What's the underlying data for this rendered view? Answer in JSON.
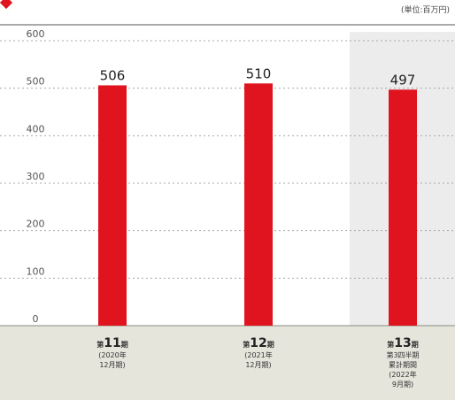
{
  "chart_data": {
    "type": "bar",
    "title": "",
    "unit_label": "(単位:百万円)",
    "ylim": [
      0,
      600
    ],
    "yticks": [
      "0",
      "100",
      "200",
      "300",
      "400",
      "500",
      "600"
    ],
    "grid": true,
    "colors": {
      "bar": "#e0141e",
      "highlight_bg": "#ececec",
      "footer_bg": "#e6e5dc",
      "grid": "#a8a8a8"
    },
    "categories": [
      {
        "prefix": "第",
        "num": "11",
        "suffix": "期",
        "lines": [
          "(2020年",
          "12月期)"
        ]
      },
      {
        "prefix": "第",
        "num": "12",
        "suffix": "期",
        "lines": [
          "(2021年",
          "12月期)"
        ]
      },
      {
        "prefix": "第",
        "num": "13",
        "suffix": "期",
        "lines": [
          "第3四半期",
          "累計期間",
          "(2022年",
          "9月期)"
        ]
      }
    ],
    "values": [
      506,
      510,
      497
    ],
    "value_labels": [
      "506",
      "510",
      "497"
    ],
    "highlight_index": 2
  }
}
